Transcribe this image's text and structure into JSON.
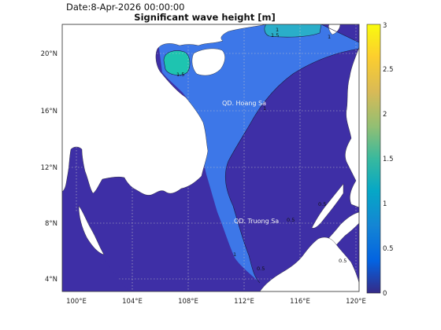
{
  "header": {
    "date_text": "Date:8-Apr-2026 00:00:00",
    "title": "Significant wave height [m]"
  },
  "map": {
    "longitude_ticks": [
      "100°E",
      "104°E",
      "108°E",
      "112°E",
      "116°E",
      "120°E"
    ],
    "latitude_ticks": [
      "4°N",
      "8°N",
      "12°N",
      "16°N",
      "20°N"
    ],
    "place_labels": {
      "paracel": "QD. Hoang Sa",
      "spratly": "QD. Truong Sa"
    },
    "contour_labels": [
      "1.5",
      "1.5",
      "1",
      "1",
      "1",
      "1",
      "0.5",
      "0.5",
      "0.5",
      "0.5"
    ],
    "colors": {
      "land": "#ffffff",
      "sea_low": "#3e2fa6",
      "sea_mid": "#3d77e8",
      "sea_high": "#1ec4b0",
      "grid": "#cccccc"
    }
  },
  "colorbar": {
    "ticks": [
      "0",
      "0.5",
      "1",
      "1.5",
      "2",
      "2.5",
      "3"
    ],
    "range": [
      0,
      3
    ],
    "colormap": "parula"
  }
}
